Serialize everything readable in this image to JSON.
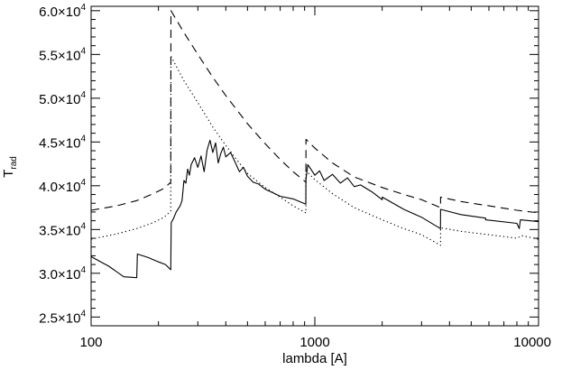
{
  "chart_data": {
    "type": "line",
    "xlabel": "lambda [A]",
    "ylabel": {
      "main": "T",
      "subscript": "rad"
    },
    "x_scale": "log",
    "xlim": [
      100,
      10000
    ],
    "ylim": [
      24000,
      60500
    ],
    "x_ticks": [
      {
        "value": 100,
        "label": "100"
      },
      {
        "value": 1000,
        "label": "1000"
      },
      {
        "value": 10000,
        "label": "10000"
      }
    ],
    "y_ticks": [
      {
        "value": 25000,
        "mantissa": "2.5×10",
        "exp": "4"
      },
      {
        "value": 30000,
        "mantissa": "3.0×10",
        "exp": "4"
      },
      {
        "value": 35000,
        "mantissa": "3.5×10",
        "exp": "4"
      },
      {
        "value": 40000,
        "mantissa": "4.0×10",
        "exp": "4"
      },
      {
        "value": 45000,
        "mantissa": "4.5×10",
        "exp": "4"
      },
      {
        "value": 50000,
        "mantissa": "5.0×10",
        "exp": "4"
      },
      {
        "value": 55000,
        "mantissa": "5.5×10",
        "exp": "4"
      },
      {
        "value": 60000,
        "mantissa": "6.0×10",
        "exp": "4"
      }
    ],
    "grid": false,
    "legend": "none",
    "series": [
      {
        "style": "dashed",
        "x": [
          100,
          130,
          160,
          190,
          212,
          227,
          227.5,
          260,
          300,
          350,
          400,
          500,
          600,
          700,
          800,
          912,
          913,
          1000,
          1200,
          1500,
          2000,
          2500,
          3000,
          3647,
          3648,
          4500,
          6000,
          8000,
          10000
        ],
        "y": [
          37200,
          37700,
          38300,
          39100,
          39700,
          40400,
          60000,
          57500,
          55000,
          52400,
          50300,
          47100,
          44800,
          43000,
          41600,
          40400,
          45300,
          44300,
          42600,
          41000,
          39800,
          39000,
          38400,
          37500,
          38700,
          38200,
          37700,
          37200,
          36900
        ]
      },
      {
        "style": "dotted",
        "x": [
          100,
          130,
          160,
          190,
          212,
          227,
          227.5,
          260,
          300,
          350,
          400,
          500,
          600,
          700,
          800,
          912,
          913,
          1000,
          1200,
          1500,
          2000,
          2500,
          3000,
          3647,
          3648,
          4500,
          6000,
          8000,
          8400,
          10000
        ],
        "y": [
          33900,
          34500,
          35100,
          35800,
          36400,
          37100,
          54800,
          52000,
          49500,
          46700,
          44600,
          41400,
          39800,
          38700,
          37700,
          36900,
          41700,
          40700,
          39100,
          37500,
          36100,
          35100,
          34400,
          33200,
          35200,
          34800,
          34400,
          34000,
          34300,
          33900
        ]
      },
      {
        "style": "solid",
        "x": [
          100,
          120,
          140,
          160,
          161,
          180,
          200,
          215,
          227,
          228,
          233,
          240,
          250,
          255,
          260,
          265,
          270,
          275,
          280,
          290,
          300,
          310,
          320,
          330,
          340,
          350,
          360,
          370,
          380,
          390,
          400,
          420,
          440,
          460,
          480,
          500,
          530,
          560,
          600,
          650,
          700,
          800,
          911,
          912,
          930,
          960,
          1000,
          1050,
          1100,
          1200,
          1300,
          1400,
          1500,
          1600,
          1800,
          2000,
          2001,
          2500,
          3000,
          3646,
          3647,
          4500,
          5800,
          5801,
          8000,
          8200,
          8300,
          10000
        ],
        "y": [
          31900,
          30800,
          29600,
          29500,
          32200,
          31800,
          31300,
          31000,
          30400,
          35800,
          36200,
          37000,
          37700,
          38300,
          40600,
          40300,
          41900,
          41200,
          42400,
          43200,
          42100,
          43400,
          41600,
          44100,
          45200,
          43800,
          44900,
          42600,
          43700,
          44400,
          43300,
          43800,
          42700,
          41600,
          42100,
          41100,
          40400,
          40200,
          39600,
          39200,
          38800,
          38500,
          37900,
          40700,
          42400,
          41900,
          41200,
          41700,
          40600,
          41300,
          40300,
          40900,
          39900,
          40100,
          39300,
          38400,
          38700,
          37300,
          36400,
          35100,
          37300,
          36700,
          36300,
          36100,
          35700,
          35100,
          36100,
          35900
        ]
      }
    ]
  }
}
